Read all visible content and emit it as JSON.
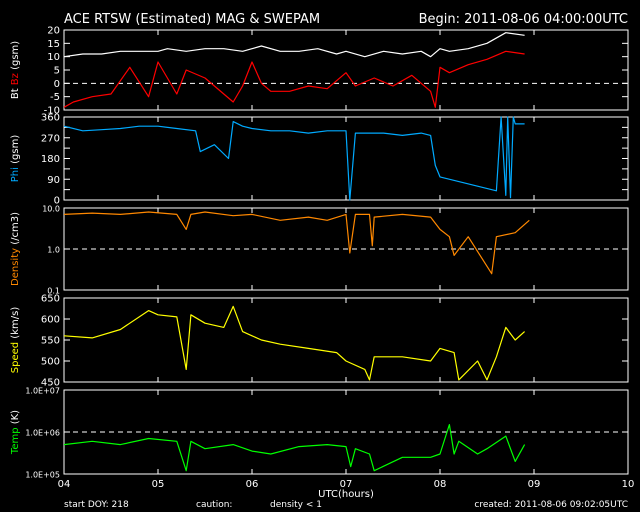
{
  "header": {
    "title": "ACE RTSW (Estimated) MAG & SWEPAM",
    "begin": "Begin: 2011-08-06 04:00:00UTC"
  },
  "footer": {
    "start_doy": "start DOY: 218",
    "caution": "caution:",
    "density_note": "density < 1",
    "created": "created: 2011-08-06 09:02:05UTC"
  },
  "colors": {
    "bt": "#ffffff",
    "bz": "#ff0000",
    "phi": "#00aaff",
    "density": "#ff8800",
    "speed": "#ffff00",
    "temp": "#00ff00",
    "axis": "#ffffff",
    "background": "#000000"
  },
  "chart_data": {
    "type": "line",
    "x_axis": {
      "label": "UTC(hours)",
      "range": [
        4,
        10
      ],
      "ticks": [
        4,
        5,
        6,
        7,
        8,
        9,
        10
      ],
      "tick_labels": [
        "04",
        "05",
        "06",
        "07",
        "08",
        "09",
        "10"
      ]
    },
    "panels": [
      {
        "ylabel_parts": [
          {
            "text": "Bt",
            "color": "#ffffff"
          },
          {
            "text": "Bz",
            "color": "#ff0000"
          },
          {
            "text": "(gsm)",
            "color": "#ffffff"
          }
        ],
        "scale": "linear",
        "ylim": [
          -10,
          20
        ],
        "yticks": [
          -10,
          -5,
          0,
          5,
          10,
          15,
          20
        ],
        "ytick_labels": [
          "-10",
          "-5",
          "0",
          "5",
          "10",
          "15",
          "20"
        ],
        "dashed": [
          0
        ],
        "series": [
          {
            "name": "Bt",
            "color": "#ffffff",
            "x": [
              4.0,
              4.2,
              4.4,
              4.6,
              4.8,
              5.0,
              5.1,
              5.3,
              5.5,
              5.7,
              5.9,
              6.0,
              6.1,
              6.3,
              6.5,
              6.7,
              6.9,
              7.0,
              7.2,
              7.4,
              7.6,
              7.8,
              7.9,
              8.0,
              8.1,
              8.3,
              8.5,
              8.7,
              8.9
            ],
            "y": [
              10,
              11,
              11,
              12,
              12,
              12,
              13,
              12,
              13,
              13,
              12,
              13,
              14,
              12,
              12,
              13,
              11,
              12,
              10,
              12,
              11,
              12,
              10,
              13,
              12,
              13,
              15,
              19,
              18
            ]
          },
          {
            "name": "Bz",
            "color": "#ff0000",
            "x": [
              4.0,
              4.1,
              4.3,
              4.5,
              4.7,
              4.9,
              5.0,
              5.1,
              5.2,
              5.3,
              5.5,
              5.7,
              5.8,
              5.9,
              6.0,
              6.1,
              6.2,
              6.4,
              6.6,
              6.8,
              7.0,
              7.1,
              7.3,
              7.5,
              7.7,
              7.9,
              7.95,
              8.0,
              8.1,
              8.3,
              8.5,
              8.7,
              8.9
            ],
            "y": [
              -9,
              -7,
              -5,
              -4,
              6,
              -5,
              8,
              2,
              -4,
              5,
              2,
              -4,
              -7,
              -1,
              8,
              0,
              -3,
              -3,
              -1,
              -2,
              4,
              -1,
              2,
              -1,
              3,
              -3,
              -9,
              6,
              4,
              7,
              9,
              12,
              11
            ]
          }
        ]
      },
      {
        "ylabel_parts": [
          {
            "text": "Phi",
            "color": "#00aaff"
          },
          {
            "text": "(gsm)",
            "color": "#ffffff"
          }
        ],
        "scale": "linear",
        "ylim": [
          0,
          360
        ],
        "yticks": [
          0,
          45,
          90,
          135,
          180,
          225,
          270,
          315,
          360
        ],
        "ytick_labels": [
          "0",
          "",
          "90",
          "",
          "180",
          "",
          "270",
          "",
          "360"
        ],
        "dashed": [],
        "series": [
          {
            "name": "Phi",
            "color": "#00aaff",
            "x": [
              4.0,
              4.2,
              4.4,
              4.6,
              4.8,
              5.0,
              5.2,
              5.4,
              5.45,
              5.6,
              5.75,
              5.8,
              5.9,
              6.0,
              6.2,
              6.4,
              6.6,
              6.8,
              7.0,
              7.04,
              7.1,
              7.2,
              7.4,
              7.6,
              7.8,
              7.9,
              7.95,
              8.0,
              8.2,
              8.4,
              8.6,
              8.65,
              8.7,
              8.72,
              8.75,
              8.78,
              8.8,
              8.9
            ],
            "y": [
              320,
              300,
              305,
              310,
              320,
              320,
              310,
              300,
              210,
              240,
              180,
              340,
              320,
              310,
              300,
              300,
              290,
              300,
              300,
              0,
              290,
              290,
              290,
              280,
              290,
              280,
              150,
              100,
              80,
              60,
              40,
              360,
              20,
              360,
              10,
              360,
              330,
              330
            ]
          }
        ]
      },
      {
        "ylabel_parts": [
          {
            "text": "Density",
            "color": "#ff8800"
          },
          {
            "text": "(/cm3)",
            "color": "#ffffff"
          }
        ],
        "scale": "log",
        "ylim": [
          0.1,
          10
        ],
        "yticks": [
          0.1,
          1,
          10
        ],
        "ytick_labels": [
          "0.1",
          "1.0",
          "10.0"
        ],
        "dashed": [
          1
        ],
        "series": [
          {
            "name": "Density",
            "color": "#ff8800",
            "x": [
              4.0,
              4.3,
              4.6,
              4.9,
              5.2,
              5.3,
              5.35,
              5.5,
              5.8,
              6.0,
              6.3,
              6.6,
              6.8,
              7.0,
              7.04,
              7.1,
              7.25,
              7.28,
              7.3,
              7.6,
              7.9,
              8.0,
              8.1,
              8.15,
              8.3,
              8.55,
              8.6,
              8.8,
              8.95
            ],
            "y": [
              7,
              7.5,
              7,
              8,
              7,
              3,
              7,
              8,
              6.5,
              7,
              5,
              6,
              5,
              7,
              0.8,
              7,
              7,
              1.2,
              6,
              7,
              6,
              3,
              2,
              0.7,
              2,
              0.25,
              2,
              2.5,
              5
            ]
          }
        ]
      },
      {
        "ylabel_parts": [
          {
            "text": "Speed",
            "color": "#ffff00"
          },
          {
            "text": "(km/s)",
            "color": "#ffffff"
          }
        ],
        "scale": "linear",
        "ylim": [
          450,
          650
        ],
        "yticks": [
          450,
          500,
          550,
          600,
          650
        ],
        "ytick_labels": [
          "450",
          "500",
          "550",
          "600",
          "650"
        ],
        "dashed": [],
        "series": [
          {
            "name": "Speed",
            "color": "#ffff00",
            "x": [
              4.0,
              4.3,
              4.6,
              4.9,
              5.0,
              5.2,
              5.3,
              5.35,
              5.5,
              5.7,
              5.8,
              5.9,
              6.0,
              6.1,
              6.3,
              6.6,
              6.9,
              7.0,
              7.2,
              7.25,
              7.3,
              7.6,
              7.9,
              8.0,
              8.15,
              8.2,
              8.4,
              8.5,
              8.6,
              8.7,
              8.8,
              8.9
            ],
            "y": [
              560,
              555,
              575,
              620,
              610,
              605,
              480,
              610,
              590,
              580,
              630,
              570,
              560,
              550,
              540,
              530,
              520,
              500,
              480,
              455,
              510,
              510,
              500,
              530,
              520,
              455,
              500,
              455,
              510,
              580,
              550,
              570
            ]
          }
        ]
      },
      {
        "ylabel_parts": [
          {
            "text": "Temp",
            "color": "#00ff00"
          },
          {
            "text": "(K)",
            "color": "#ffffff"
          }
        ],
        "scale": "log",
        "ylim": [
          100000,
          10000000
        ],
        "yticks": [
          100000,
          1000000,
          10000000
        ],
        "ytick_labels": [
          "1.0E+05",
          "1.0E+06",
          "1.0E+07"
        ],
        "dashed": [
          1000000
        ],
        "series": [
          {
            "name": "Temp",
            "color": "#00ff00",
            "x": [
              4.0,
              4.3,
              4.6,
              4.9,
              5.2,
              5.3,
              5.35,
              5.5,
              5.8,
              6.0,
              6.2,
              6.5,
              6.8,
              7.0,
              7.05,
              7.1,
              7.25,
              7.3,
              7.6,
              7.9,
              8.0,
              8.1,
              8.15,
              8.2,
              8.4,
              8.5,
              8.7,
              8.8,
              8.9
            ],
            "y": [
              500000,
              600000,
              500000,
              700000,
              600000,
              120000,
              600000,
              400000,
              500000,
              350000,
              300000,
              450000,
              500000,
              450000,
              150000,
              400000,
              300000,
              120000,
              250000,
              250000,
              300000,
              1500000,
              300000,
              600000,
              300000,
              400000,
              800000,
              200000,
              500000
            ]
          }
        ]
      }
    ]
  }
}
